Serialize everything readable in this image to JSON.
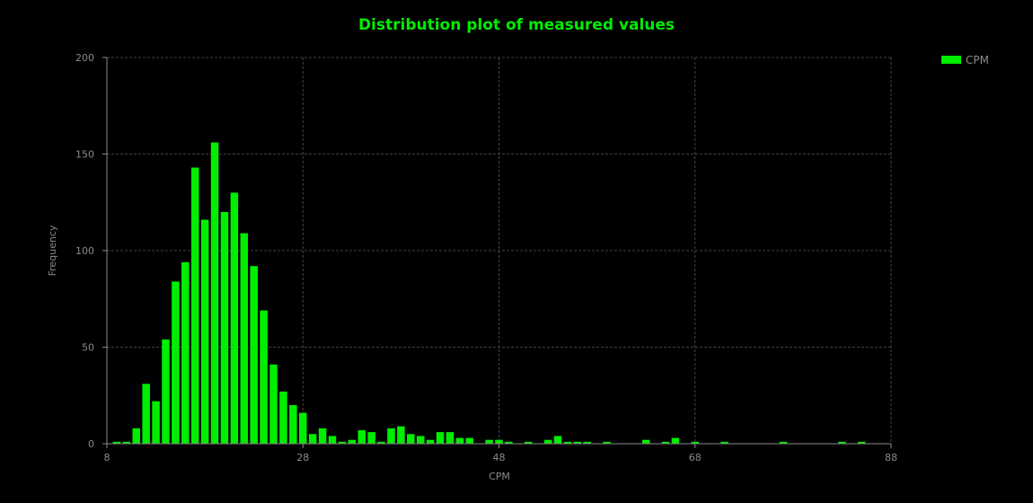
{
  "chart_data": {
    "type": "bar",
    "title": "Distribution plot of measured values",
    "xlabel": "CPM",
    "ylabel": "Frequency",
    "xlim": [
      8,
      88
    ],
    "ylim": [
      0,
      200
    ],
    "x_ticks": [
      8,
      28,
      48,
      68,
      88
    ],
    "y_ticks": [
      0,
      50,
      100,
      150,
      200
    ],
    "x_tick_labels": [
      "8",
      "28",
      "48",
      "68",
      "88"
    ],
    "y_tick_labels": [
      "0",
      "50",
      "100",
      "150",
      "200"
    ],
    "grid": true,
    "legend_position": "top-right",
    "bin_width": 1,
    "series": [
      {
        "name": "CPM",
        "color": "#00ee00",
        "x": [
          9,
          10,
          11,
          12,
          13,
          14,
          15,
          16,
          17,
          18,
          19,
          20,
          21,
          22,
          23,
          24,
          25,
          26,
          27,
          28,
          29,
          30,
          31,
          32,
          33,
          34,
          35,
          36,
          37,
          38,
          39,
          40,
          41,
          42,
          43,
          44,
          45,
          46,
          47,
          48,
          49,
          51,
          53,
          54,
          55,
          56,
          57,
          59,
          63,
          65,
          66,
          68,
          71,
          77,
          83,
          85
        ],
        "values": [
          1,
          1,
          8,
          31,
          22,
          54,
          84,
          94,
          143,
          116,
          156,
          120,
          130,
          109,
          92,
          69,
          41,
          27,
          20,
          16,
          5,
          8,
          4,
          1,
          2,
          7,
          6,
          1,
          8,
          9,
          5,
          4,
          2,
          6,
          6,
          3,
          3,
          0,
          2,
          2,
          1,
          1,
          2,
          4,
          1,
          1,
          1,
          1,
          2,
          1,
          3,
          1,
          1,
          1,
          1,
          1
        ]
      }
    ]
  },
  "colors": {
    "background": "#000000",
    "accent": "#00ee00",
    "text": "#8a8a8a",
    "grid": "#555555"
  }
}
